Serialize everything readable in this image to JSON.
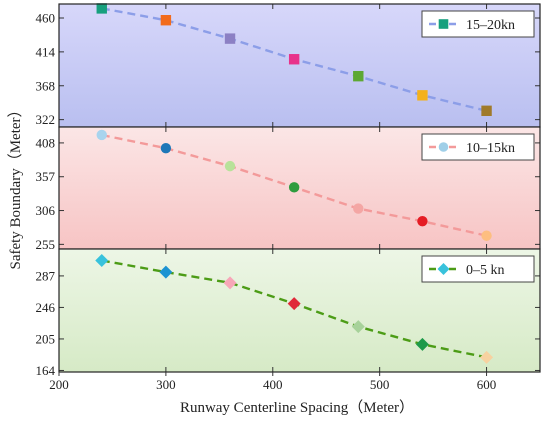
{
  "chart_data": {
    "type": "scatter",
    "xlabel": "Runway Centerline Spacing（Meter）",
    "ylabel": "Safety Boundary（Meter）",
    "x_ticks": [
      200,
      300,
      400,
      500,
      600
    ],
    "xlim": [
      200,
      650
    ],
    "grid": false,
    "legend_placement": "top-right",
    "panels": [
      {
        "legend": "15–20kn",
        "ylim": [
          312,
          479
        ],
        "y_ticks": [
          322,
          368,
          414,
          460
        ],
        "line_color": "#8C9EE8",
        "marker": "square",
        "legend_marker_color": "#17A07E",
        "background_top": "#D7D7FA",
        "background_bottom": "#B9BFF0",
        "x": [
          240,
          300,
          360,
          420,
          480,
          540,
          600
        ],
        "y": [
          473,
          457,
          432,
          404,
          381,
          355,
          334
        ],
        "point_colors": [
          "#17A07E",
          "#F26B1C",
          "#8C80C4",
          "#E8318B",
          "#5DA832",
          "#F4B11B",
          "#A07A2A"
        ]
      },
      {
        "legend": "10–15kn",
        "ylim": [
          248,
          432
        ],
        "y_ticks": [
          255,
          306,
          357,
          408
        ],
        "line_color": "#F39A9A",
        "marker": "circle",
        "legend_marker_color": "#9FCFE8",
        "background_top": "#FBE6E6",
        "background_bottom": "#F7C4C4",
        "x": [
          240,
          300,
          360,
          420,
          480,
          540,
          600
        ],
        "y": [
          420,
          400,
          373,
          341,
          309,
          290,
          268
        ],
        "point_colors": [
          "#A8D4EE",
          "#1E78B8",
          "#B8E29A",
          "#2E9C3E",
          "#F4A6A4",
          "#E51C24",
          "#FDBE80"
        ]
      },
      {
        "legend": "0–5 kn",
        "ylim": [
          162,
          322
        ],
        "y_ticks": [
          164,
          205,
          246,
          287
        ],
        "line_color": "#4C9C16",
        "marker": "diamond",
        "legend_marker_color": "#38C2DC",
        "background_top": "#EDF6E6",
        "background_bottom": "#D6EAC6",
        "x": [
          240,
          300,
          360,
          420,
          480,
          540,
          600
        ],
        "y": [
          307,
          292,
          278,
          251,
          221,
          198,
          181
        ],
        "point_colors": [
          "#38C2DC",
          "#1C93D2",
          "#F7A6B8",
          "#E02A3A",
          "#A7D29A",
          "#1E9A4A",
          "#F7D2A0"
        ]
      }
    ]
  }
}
